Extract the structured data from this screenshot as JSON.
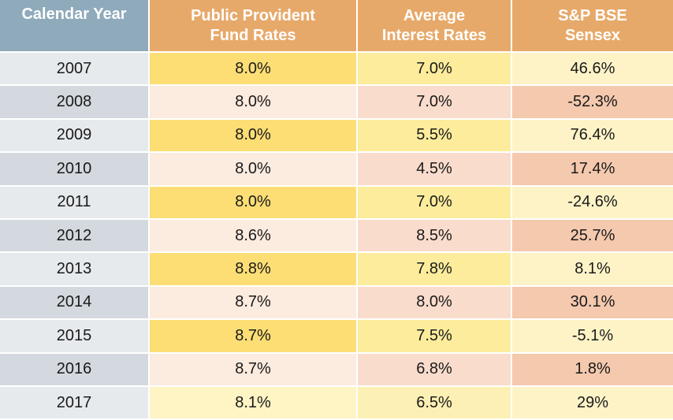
{
  "table": {
    "headers": {
      "year": "Calendar Year",
      "ppf_line1": "Public Provident",
      "ppf_line2": "Fund Rates",
      "avg_line1": "Average",
      "avg_line2": "Interest Rates",
      "bse_line1": "S&P BSE",
      "bse_line2": "Sensex"
    },
    "rows": [
      {
        "year": "2007",
        "ppf": "8.0%",
        "avg": "7.0%",
        "bse": "46.6%"
      },
      {
        "year": "2008",
        "ppf": "8.0%",
        "avg": "7.0%",
        "bse": "-52.3%"
      },
      {
        "year": "2009",
        "ppf": "8.0%",
        "avg": "5.5%",
        "bse": "76.4%"
      },
      {
        "year": "2010",
        "ppf": "8.0%",
        "avg": "4.5%",
        "bse": "17.4%"
      },
      {
        "year": "2011",
        "ppf": "8.0%",
        "avg": "7.0%",
        "bse": "-24.6%"
      },
      {
        "year": "2012",
        "ppf": "8.6%",
        "avg": "8.5%",
        "bse": "25.7%"
      },
      {
        "year": "2013",
        "ppf": "8.8%",
        "avg": "7.8%",
        "bse": "8.1%"
      },
      {
        "year": "2014",
        "ppf": "8.7%",
        "avg": "8.0%",
        "bse": "30.1%"
      },
      {
        "year": "2015",
        "ppf": "8.7%",
        "avg": "7.5%",
        "bse": "-5.1%"
      },
      {
        "year": "2016",
        "ppf": "8.7%",
        "avg": "6.8%",
        "bse": "1.8%"
      },
      {
        "year": "2017",
        "ppf": "8.1%",
        "avg": "6.5%",
        "bse": "29%"
      }
    ]
  },
  "colors": {
    "year_header": "#8eaabb",
    "orange_header": "#e7a96a"
  }
}
